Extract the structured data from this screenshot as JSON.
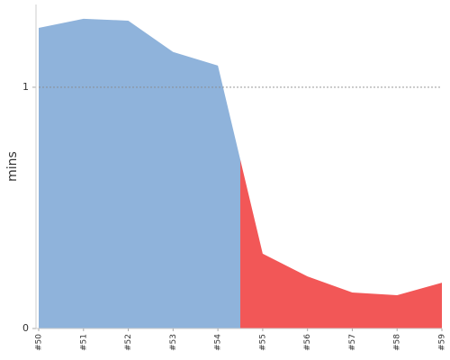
{
  "chart_data": {
    "type": "area",
    "y_label": "mins",
    "categories": [
      "#50",
      "#51",
      "#52",
      "#53",
      "#54",
      "#55",
      "#56",
      "#57",
      "#58",
      "#59"
    ],
    "values": [
      1.246,
      1.284,
      1.276,
      1.146,
      1.09,
      0.31,
      0.216,
      0.149,
      0.138,
      0.19
    ],
    "point_colors": [
      "#8fb3db",
      "#8fb3db",
      "#8fb3db",
      "#8fb3db",
      "#8fb3db",
      "#f25757",
      "#f25757",
      "#f25757",
      "#f25757",
      "#f25757"
    ],
    "ylim": [
      0,
      1.343
    ],
    "yticks": [
      0,
      1
    ],
    "grid": true
  }
}
